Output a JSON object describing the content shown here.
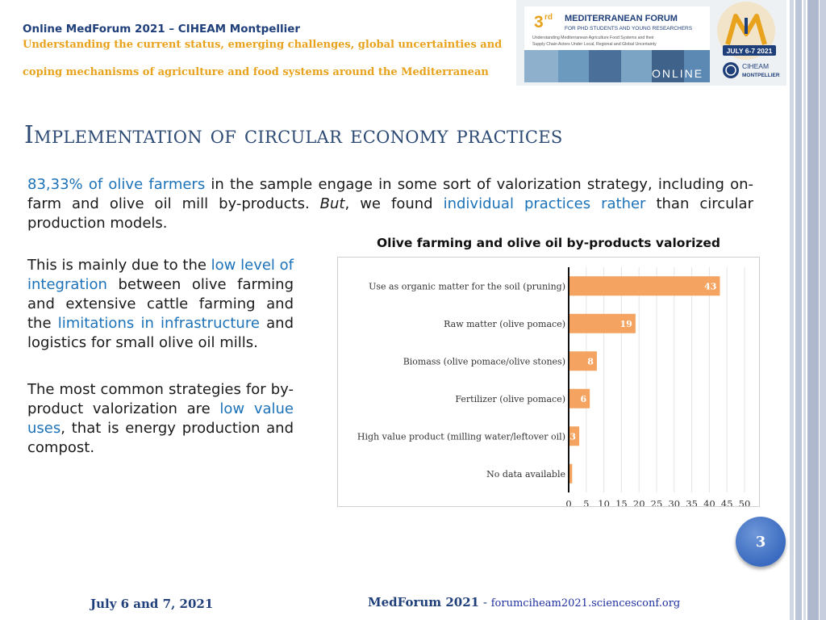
{
  "header": {
    "title": "Online MedForum 2021 – CIHEAM Montpellier",
    "subtitle_line1": "Understanding the current status, emerging challenges, global uncertainties and",
    "subtitle_line2": "coping mechanisms of agriculture and food systems around the Mediterranean"
  },
  "banner": {
    "ordinal": "3",
    "ordinal_suffix": "rd",
    "forum_name": "MEDITERRANEAN FORUM",
    "forum_audience": "FOR PHD STUDENTS AND YOUNG RESEARCHERS",
    "desc_line1": "Understanding Mediterranean Agriculture Food Systems and their",
    "desc_line2": "Supply Chain Actors Under Local, Regional and Global Uncertainty",
    "online_label": "ONLINE",
    "date_badge": "JULY 6-7 2021",
    "org_name": "CIHEAM",
    "org_city": "MONTPELLIER"
  },
  "slide": {
    "title": "Implementation of circular economy practices",
    "intro": {
      "p1_hl": "83,33% of olive farmers",
      "p1_a": " in the sample engage in some sort of valorization strategy, including on-farm and olive oil mill by-products. ",
      "p1_em": "But",
      "p1_b": ", we found ",
      "p1_hl2": "individual practices rather",
      "p1_c": " than circular production models."
    },
    "left": {
      "p2_a": "This is mainly due to the ",
      "p2_hl": "low level of integration",
      "p2_b": " between olive farming and extensive cattle farming and the ",
      "p2_hl2": "limitations in infrastructure",
      "p2_c": " and logistics for small olive oil mills.",
      "p3_a": "The most common strategies for by-product valorization are ",
      "p3_hl": "low value uses",
      "p3_b": ", that is energy production and compost."
    }
  },
  "chart_data": {
    "type": "bar",
    "orientation": "horizontal",
    "title": "Olive farming and olive oil by-products valorized",
    "categories": [
      "Use as organic matter for the soil (pruning)",
      "Raw matter (olive pomace)",
      "Biomass (olive pomace/olive stones)",
      "Fertilizer (olive pomace)",
      "High value product (milling water/leftover oil)",
      "No data available"
    ],
    "values": [
      43,
      19,
      8,
      6,
      3,
      1
    ],
    "data_labels": [
      "43",
      "19",
      "8",
      "6",
      "3",
      ""
    ],
    "xlim": [
      0,
      50
    ],
    "xticks": [
      0,
      5,
      10,
      15,
      20,
      25,
      30,
      35,
      40,
      45,
      50
    ],
    "grid": true,
    "bar_color": "#f4a460"
  },
  "footer": {
    "date": "July 6 and 7, 2021",
    "name": "MedForum 2021",
    "sep": " - ",
    "url": "forumciheam2021.sciencesconf.org"
  },
  "page_number": "3",
  "colors": {
    "title": "#2d4a75",
    "highlight": "#1c72b8",
    "accent_gold": "#e8a21c",
    "header_blue": "#1f3f7a"
  }
}
